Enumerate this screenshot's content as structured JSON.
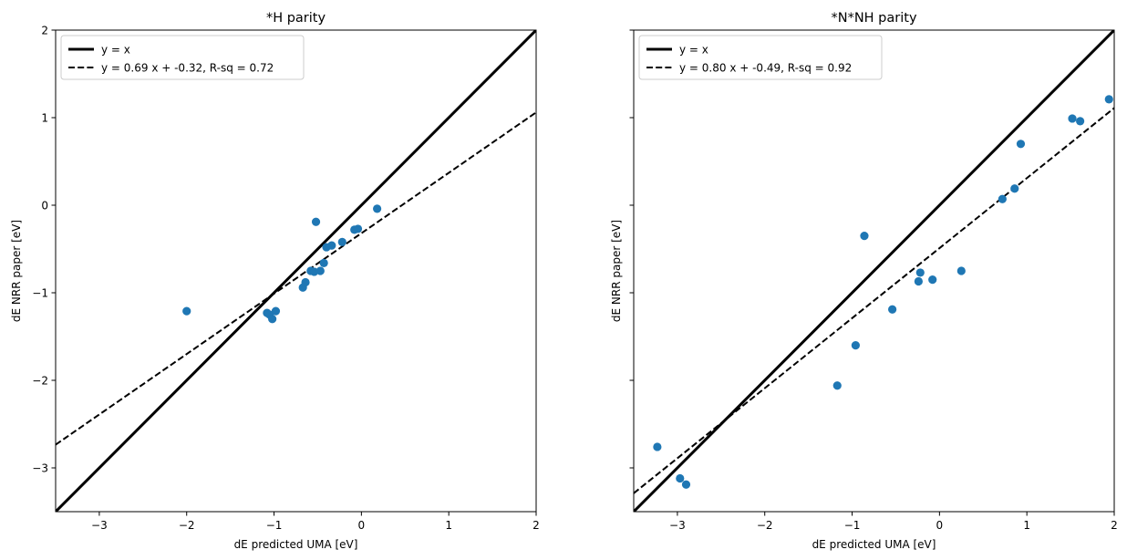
{
  "chart_data": [
    {
      "type": "scatter",
      "title": "*H parity",
      "xlabel": "dE predicted UMA [eV]",
      "ylabel": "dE NRR paper [eV]",
      "xlim": [
        -3.5,
        2
      ],
      "ylim": [
        -3.5,
        2
      ],
      "xticks": [
        -3,
        -2,
        -1,
        0,
        1,
        2
      ],
      "yticks": [
        -3,
        -2,
        -1,
        0,
        1,
        2
      ],
      "tick_labels": [
        "−3",
        "−2",
        "−1",
        "0",
        "1",
        "2"
      ],
      "legend_position": "top-left",
      "lines": [
        {
          "label": "y = x",
          "style": "solid",
          "slope": 1,
          "intercept": 0,
          "color": "#000000"
        },
        {
          "label": "y = 0.69 x + -0.32, R-sq = 0.72",
          "style": "dashed",
          "slope": 0.69,
          "intercept": -0.32,
          "color": "#000000"
        }
      ],
      "points_color": "#1f77b4",
      "points": [
        [
          -2.0,
          -1.21
        ],
        [
          -1.08,
          -1.23
        ],
        [
          -1.05,
          -1.25
        ],
        [
          -1.02,
          -1.3
        ],
        [
          -0.98,
          -1.21
        ],
        [
          -0.67,
          -0.94
        ],
        [
          -0.64,
          -0.88
        ],
        [
          -0.58,
          -0.75
        ],
        [
          -0.54,
          -0.76
        ],
        [
          -0.47,
          -0.75
        ],
        [
          -0.52,
          -0.19
        ],
        [
          -0.43,
          -0.66
        ],
        [
          -0.4,
          -0.48
        ],
        [
          -0.34,
          -0.46
        ],
        [
          -0.22,
          -0.42
        ],
        [
          -0.08,
          -0.28
        ],
        [
          -0.04,
          -0.27
        ],
        [
          0.18,
          -0.04
        ]
      ]
    },
    {
      "type": "scatter",
      "title": "*N*NH parity",
      "xlabel": "dE predicted UMA [eV]",
      "ylabel": "dE NRR paper [eV]",
      "xlim": [
        -3.5,
        2
      ],
      "ylim": [
        -3.5,
        2
      ],
      "xticks": [
        -3,
        -2,
        -1,
        0,
        1,
        2
      ],
      "yticks": [
        -3,
        -2,
        -1,
        0,
        1,
        2
      ],
      "tick_labels": [
        "−3",
        "−2",
        "−1",
        "0",
        "1",
        "2"
      ],
      "legend_position": "top-left",
      "lines": [
        {
          "label": "y = x",
          "style": "solid",
          "slope": 1,
          "intercept": 0,
          "color": "#000000"
        },
        {
          "label": "y = 0.80 x + -0.49, R-sq = 0.92",
          "style": "dashed",
          "slope": 0.8,
          "intercept": -0.49,
          "color": "#000000"
        }
      ],
      "points_color": "#1f77b4",
      "points": [
        [
          -3.23,
          -2.76
        ],
        [
          -2.97,
          -3.12
        ],
        [
          -2.9,
          -3.19
        ],
        [
          -1.17,
          -2.06
        ],
        [
          -0.96,
          -1.6
        ],
        [
          -0.86,
          -0.35
        ],
        [
          -0.54,
          -1.19
        ],
        [
          -0.24,
          -0.87
        ],
        [
          -0.22,
          -0.77
        ],
        [
          -0.08,
          -0.85
        ],
        [
          0.25,
          -0.75
        ],
        [
          0.72,
          0.07
        ],
        [
          0.86,
          0.19
        ],
        [
          0.93,
          0.7
        ],
        [
          1.52,
          0.99
        ],
        [
          1.61,
          0.96
        ],
        [
          1.94,
          1.21
        ]
      ]
    }
  ]
}
